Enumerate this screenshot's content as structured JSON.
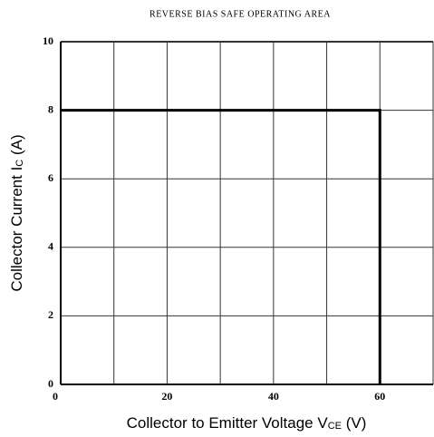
{
  "chart_data": {
    "type": "line",
    "title": "REVERSE BIAS SAFE OPERATING AREA",
    "x_label": {
      "text": "Collector to Emitter Voltage  V",
      "sub": "CE",
      "unit": "  (V)"
    },
    "y_label": {
      "text": "Collector Current  I",
      "sub": "C",
      "unit": "  (A)"
    },
    "x": [
      0,
      60,
      60
    ],
    "series": [
      {
        "color": "#000000",
        "values": [
          8,
          8,
          0
        ]
      }
    ],
    "xlim": [
      0,
      70
    ],
    "xticks": [
      0,
      20,
      40,
      60
    ],
    "xminor": [
      10,
      30,
      50,
      70
    ],
    "ylim": [
      0,
      10
    ],
    "yticks": [
      0,
      2,
      4,
      6,
      8,
      10
    ],
    "grid": true
  }
}
